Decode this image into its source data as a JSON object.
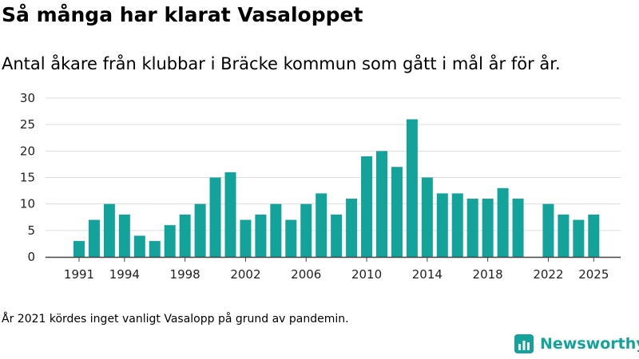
{
  "title": "Så många har klarat Vasaloppet",
  "subtitle": "Antal åkare från klubbar i Bräcke kommun som gått i mål år för år.",
  "footnote": "År 2021 kördes inget vanligt Vasalopp på grund av pandemin.",
  "brand": {
    "name": "Newsworthy",
    "icon": "newsworthy-logo-icon",
    "color": "#13a39a"
  },
  "chart_data": {
    "type": "bar",
    "bar_color": "#13a39a",
    "grid": true,
    "xlabel": "",
    "ylabel": "",
    "ylim": [
      0,
      30
    ],
    "yticks": [
      0,
      5,
      10,
      15,
      20,
      25,
      30
    ],
    "xticks": [
      1991,
      1994,
      1998,
      2002,
      2006,
      2010,
      2014,
      2018,
      2022,
      2025
    ],
    "categories": [
      1991,
      1992,
      1993,
      1994,
      1995,
      1996,
      1997,
      1998,
      1999,
      2000,
      2001,
      2002,
      2003,
      2004,
      2005,
      2006,
      2007,
      2008,
      2009,
      2010,
      2011,
      2012,
      2013,
      2014,
      2015,
      2016,
      2017,
      2018,
      2019,
      2020,
      2021,
      2022,
      2023,
      2024,
      2025
    ],
    "values": [
      3,
      7,
      10,
      8,
      4,
      3,
      6,
      8,
      10,
      15,
      16,
      7,
      8,
      10,
      7,
      10,
      12,
      8,
      11,
      19,
      20,
      17,
      26,
      15,
      12,
      12,
      11,
      11,
      13,
      11,
      null,
      10,
      8,
      7,
      8
    ]
  }
}
